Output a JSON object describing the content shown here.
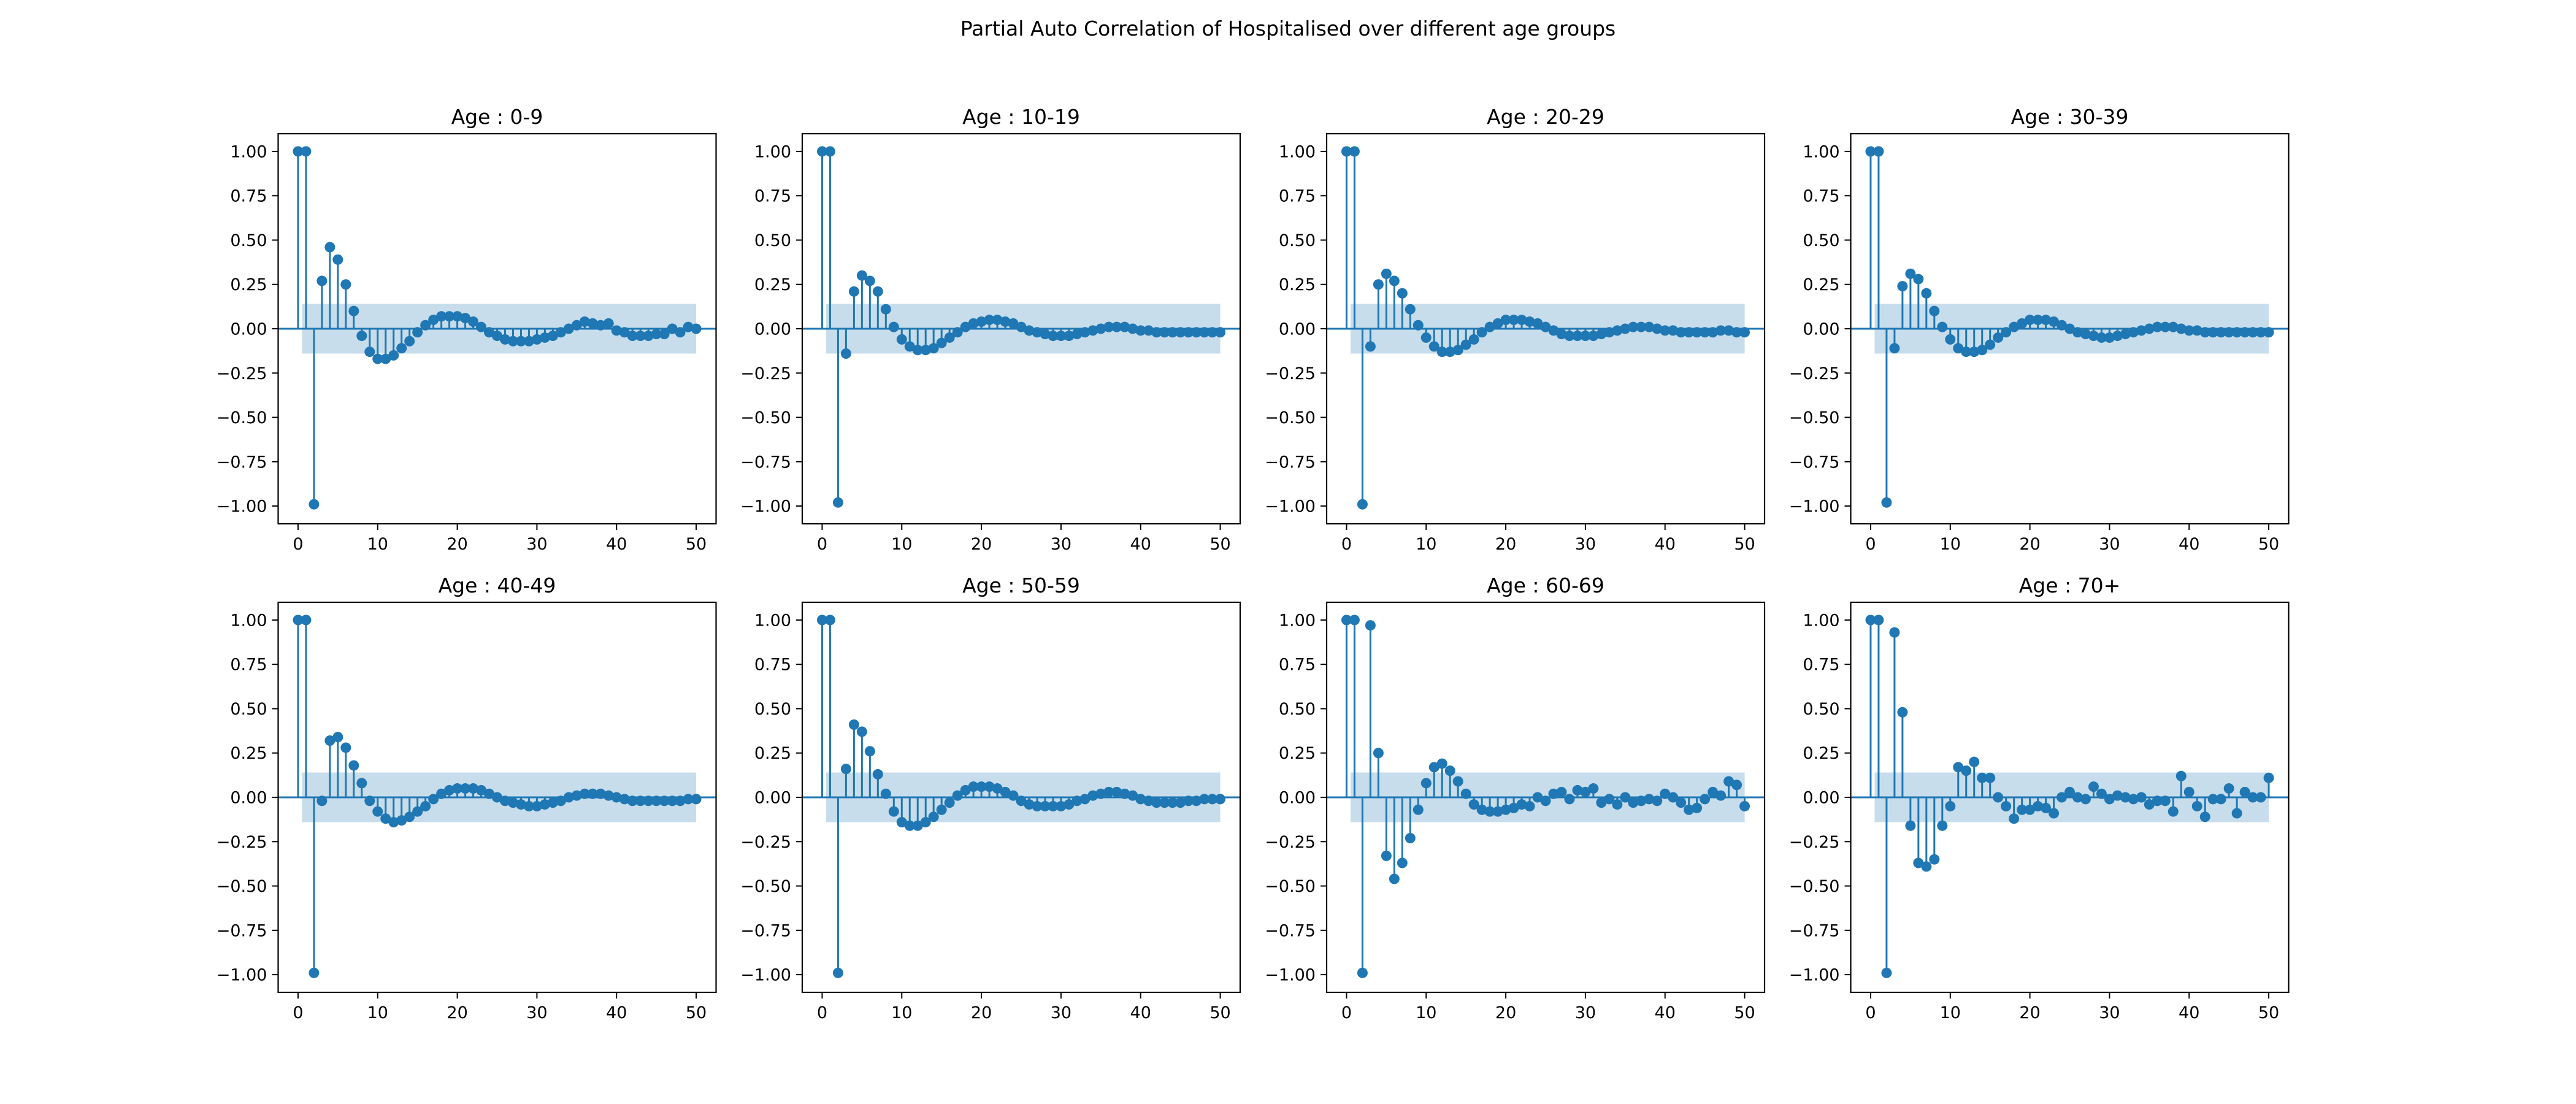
{
  "figure": {
    "title": "Partial Auto Correlation of Hospitalised over different age groups"
  },
  "chart_style": {
    "stem_color": "#1f77b4",
    "band_color": "#1f77b4",
    "band_opacity": 0.25,
    "axes_color": "#000000"
  },
  "chart_data": [
    {
      "type": "stem",
      "title": "Age : 0-9",
      "xlim": [
        -2.5,
        52.5
      ],
      "ylim": [
        -1.1,
        1.1
      ],
      "xticks": [
        0,
        10,
        20,
        30,
        40,
        50
      ],
      "yticks": [
        -1.0,
        -0.75,
        -0.5,
        -0.25,
        0.0,
        0.25,
        0.5,
        0.75,
        1.0
      ],
      "confidence_band": 0.14,
      "lags": [
        0,
        1,
        2,
        3,
        4,
        5,
        6,
        7,
        8,
        9,
        10,
        11,
        12,
        13,
        14,
        15,
        16,
        17,
        18,
        19,
        20,
        21,
        22,
        23,
        24,
        25,
        26,
        27,
        28,
        29,
        30,
        31,
        32,
        33,
        34,
        35,
        36,
        37,
        38,
        39,
        40,
        41,
        42,
        43,
        44,
        45,
        46,
        47,
        48,
        49,
        50
      ],
      "values": [
        1.0,
        1.0,
        -0.99,
        0.27,
        0.46,
        0.39,
        0.25,
        0.1,
        -0.04,
        -0.13,
        -0.17,
        -0.17,
        -0.15,
        -0.11,
        -0.07,
        -0.02,
        0.02,
        0.05,
        0.07,
        0.07,
        0.07,
        0.06,
        0.04,
        0.01,
        -0.02,
        -0.04,
        -0.06,
        -0.07,
        -0.07,
        -0.07,
        -0.06,
        -0.05,
        -0.04,
        -0.02,
        0.0,
        0.02,
        0.04,
        0.03,
        0.02,
        0.03,
        -0.01,
        -0.02,
        -0.04,
        -0.04,
        -0.04,
        -0.03,
        -0.03,
        0.0,
        -0.02,
        0.01,
        0.0
      ]
    },
    {
      "type": "stem",
      "title": "Age : 10-19",
      "xlim": [
        -2.5,
        52.5
      ],
      "ylim": [
        -1.1,
        1.1
      ],
      "xticks": [
        0,
        10,
        20,
        30,
        40,
        50
      ],
      "yticks": [
        -1.0,
        -0.75,
        -0.5,
        -0.25,
        0.0,
        0.25,
        0.5,
        0.75,
        1.0
      ],
      "confidence_band": 0.14,
      "lags": [
        0,
        1,
        2,
        3,
        4,
        5,
        6,
        7,
        8,
        9,
        10,
        11,
        12,
        13,
        14,
        15,
        16,
        17,
        18,
        19,
        20,
        21,
        22,
        23,
        24,
        25,
        26,
        27,
        28,
        29,
        30,
        31,
        32,
        33,
        34,
        35,
        36,
        37,
        38,
        39,
        40,
        41,
        42,
        43,
        44,
        45,
        46,
        47,
        48,
        49,
        50
      ],
      "values": [
        1.0,
        1.0,
        -0.98,
        -0.14,
        0.21,
        0.3,
        0.27,
        0.21,
        0.11,
        0.01,
        -0.06,
        -0.1,
        -0.12,
        -0.12,
        -0.11,
        -0.08,
        -0.05,
        -0.02,
        0.01,
        0.03,
        0.04,
        0.05,
        0.05,
        0.04,
        0.03,
        0.01,
        -0.01,
        -0.02,
        -0.03,
        -0.04,
        -0.04,
        -0.04,
        -0.03,
        -0.02,
        -0.01,
        0.0,
        0.01,
        0.01,
        0.01,
        0.0,
        -0.01,
        -0.01,
        -0.02,
        -0.02,
        -0.02,
        -0.02,
        -0.02,
        -0.02,
        -0.02,
        -0.02,
        -0.02
      ]
    },
    {
      "type": "stem",
      "title": "Age : 20-29",
      "xlim": [
        -2.5,
        52.5
      ],
      "ylim": [
        -1.1,
        1.1
      ],
      "xticks": [
        0,
        10,
        20,
        30,
        40,
        50
      ],
      "yticks": [
        -1.0,
        -0.75,
        -0.5,
        -0.25,
        0.0,
        0.25,
        0.5,
        0.75,
        1.0
      ],
      "confidence_band": 0.14,
      "lags": [
        0,
        1,
        2,
        3,
        4,
        5,
        6,
        7,
        8,
        9,
        10,
        11,
        12,
        13,
        14,
        15,
        16,
        17,
        18,
        19,
        20,
        21,
        22,
        23,
        24,
        25,
        26,
        27,
        28,
        29,
        30,
        31,
        32,
        33,
        34,
        35,
        36,
        37,
        38,
        39,
        40,
        41,
        42,
        43,
        44,
        45,
        46,
        47,
        48,
        49,
        50
      ],
      "values": [
        1.0,
        1.0,
        -0.99,
        -0.1,
        0.25,
        0.31,
        0.27,
        0.2,
        0.11,
        0.02,
        -0.05,
        -0.1,
        -0.13,
        -0.13,
        -0.12,
        -0.09,
        -0.06,
        -0.02,
        0.01,
        0.03,
        0.05,
        0.05,
        0.05,
        0.04,
        0.03,
        0.01,
        -0.01,
        -0.03,
        -0.04,
        -0.04,
        -0.04,
        -0.04,
        -0.03,
        -0.02,
        -0.01,
        0.0,
        0.01,
        0.01,
        0.01,
        0.0,
        -0.01,
        -0.01,
        -0.02,
        -0.02,
        -0.02,
        -0.02,
        -0.02,
        -0.01,
        -0.01,
        -0.02,
        -0.02
      ]
    },
    {
      "type": "stem",
      "title": "Age : 30-39",
      "xlim": [
        -2.5,
        52.5
      ],
      "ylim": [
        -1.1,
        1.1
      ],
      "xticks": [
        0,
        10,
        20,
        30,
        40,
        50
      ],
      "yticks": [
        -1.0,
        -0.75,
        -0.5,
        -0.25,
        0.0,
        0.25,
        0.5,
        0.75,
        1.0
      ],
      "confidence_band": 0.14,
      "lags": [
        0,
        1,
        2,
        3,
        4,
        5,
        6,
        7,
        8,
        9,
        10,
        11,
        12,
        13,
        14,
        15,
        16,
        17,
        18,
        19,
        20,
        21,
        22,
        23,
        24,
        25,
        26,
        27,
        28,
        29,
        30,
        31,
        32,
        33,
        34,
        35,
        36,
        37,
        38,
        39,
        40,
        41,
        42,
        43,
        44,
        45,
        46,
        47,
        48,
        49,
        50
      ],
      "values": [
        1.0,
        1.0,
        -0.98,
        -0.11,
        0.24,
        0.31,
        0.28,
        0.2,
        0.1,
        0.01,
        -0.06,
        -0.11,
        -0.13,
        -0.13,
        -0.12,
        -0.09,
        -0.05,
        -0.02,
        0.01,
        0.03,
        0.05,
        0.05,
        0.05,
        0.04,
        0.02,
        0.0,
        -0.02,
        -0.03,
        -0.04,
        -0.05,
        -0.05,
        -0.04,
        -0.03,
        -0.02,
        -0.01,
        0.0,
        0.01,
        0.01,
        0.01,
        0.0,
        -0.01,
        -0.01,
        -0.02,
        -0.02,
        -0.02,
        -0.02,
        -0.02,
        -0.02,
        -0.02,
        -0.02,
        -0.02
      ]
    },
    {
      "type": "stem",
      "title": "Age : 40-49",
      "xlim": [
        -2.5,
        52.5
      ],
      "ylim": [
        -1.1,
        1.1
      ],
      "xticks": [
        0,
        10,
        20,
        30,
        40,
        50
      ],
      "yticks": [
        -1.0,
        -0.75,
        -0.5,
        -0.25,
        0.0,
        0.25,
        0.5,
        0.75,
        1.0
      ],
      "confidence_band": 0.14,
      "lags": [
        0,
        1,
        2,
        3,
        4,
        5,
        6,
        7,
        8,
        9,
        10,
        11,
        12,
        13,
        14,
        15,
        16,
        17,
        18,
        19,
        20,
        21,
        22,
        23,
        24,
        25,
        26,
        27,
        28,
        29,
        30,
        31,
        32,
        33,
        34,
        35,
        36,
        37,
        38,
        39,
        40,
        41,
        42,
        43,
        44,
        45,
        46,
        47,
        48,
        49,
        50
      ],
      "values": [
        1.0,
        1.0,
        -0.99,
        -0.02,
        0.32,
        0.34,
        0.28,
        0.18,
        0.08,
        -0.02,
        -0.08,
        -0.12,
        -0.14,
        -0.13,
        -0.11,
        -0.08,
        -0.05,
        -0.01,
        0.02,
        0.04,
        0.05,
        0.05,
        0.05,
        0.04,
        0.02,
        0.0,
        -0.02,
        -0.03,
        -0.04,
        -0.05,
        -0.05,
        -0.04,
        -0.03,
        -0.02,
        0.0,
        0.01,
        0.02,
        0.02,
        0.02,
        0.01,
        0.0,
        -0.01,
        -0.02,
        -0.02,
        -0.02,
        -0.02,
        -0.02,
        -0.02,
        -0.02,
        -0.01,
        -0.01
      ]
    },
    {
      "type": "stem",
      "title": "Age : 50-59",
      "xlim": [
        -2.5,
        52.5
      ],
      "ylim": [
        -1.1,
        1.1
      ],
      "xticks": [
        0,
        10,
        20,
        30,
        40,
        50
      ],
      "yticks": [
        -1.0,
        -0.75,
        -0.5,
        -0.25,
        0.0,
        0.25,
        0.5,
        0.75,
        1.0
      ],
      "confidence_band": 0.14,
      "lags": [
        0,
        1,
        2,
        3,
        4,
        5,
        6,
        7,
        8,
        9,
        10,
        11,
        12,
        13,
        14,
        15,
        16,
        17,
        18,
        19,
        20,
        21,
        22,
        23,
        24,
        25,
        26,
        27,
        28,
        29,
        30,
        31,
        32,
        33,
        34,
        35,
        36,
        37,
        38,
        39,
        40,
        41,
        42,
        43,
        44,
        45,
        46,
        47,
        48,
        49,
        50
      ],
      "values": [
        1.0,
        1.0,
        -0.99,
        0.16,
        0.41,
        0.37,
        0.26,
        0.13,
        0.02,
        -0.08,
        -0.14,
        -0.16,
        -0.16,
        -0.14,
        -0.11,
        -0.07,
        -0.03,
        0.01,
        0.04,
        0.06,
        0.06,
        0.06,
        0.05,
        0.03,
        0.01,
        -0.02,
        -0.04,
        -0.05,
        -0.05,
        -0.05,
        -0.05,
        -0.04,
        -0.02,
        -0.01,
        0.01,
        0.02,
        0.03,
        0.03,
        0.02,
        0.01,
        -0.01,
        -0.02,
        -0.03,
        -0.03,
        -0.03,
        -0.03,
        -0.02,
        -0.02,
        -0.01,
        -0.01,
        -0.01
      ]
    },
    {
      "type": "stem",
      "title": "Age : 60-69",
      "xlim": [
        -2.5,
        52.5
      ],
      "ylim": [
        -1.1,
        1.1
      ],
      "xticks": [
        0,
        10,
        20,
        30,
        40,
        50
      ],
      "yticks": [
        -1.0,
        -0.75,
        -0.5,
        -0.25,
        0.0,
        0.25,
        0.5,
        0.75,
        1.0
      ],
      "confidence_band": 0.14,
      "lags": [
        0,
        1,
        2,
        3,
        4,
        5,
        6,
        7,
        8,
        9,
        10,
        11,
        12,
        13,
        14,
        15,
        16,
        17,
        18,
        19,
        20,
        21,
        22,
        23,
        24,
        25,
        26,
        27,
        28,
        29,
        30,
        31,
        32,
        33,
        34,
        35,
        36,
        37,
        38,
        39,
        40,
        41,
        42,
        43,
        44,
        45,
        46,
        47,
        48,
        49,
        50
      ],
      "values": [
        1.0,
        1.0,
        -0.99,
        0.97,
        0.25,
        -0.33,
        -0.46,
        -0.37,
        -0.23,
        -0.07,
        0.08,
        0.17,
        0.19,
        0.15,
        0.09,
        0.02,
        -0.04,
        -0.07,
        -0.08,
        -0.08,
        -0.07,
        -0.06,
        -0.04,
        -0.05,
        0.0,
        -0.02,
        0.02,
        0.03,
        -0.01,
        0.04,
        0.03,
        0.05,
        -0.03,
        -0.01,
        -0.04,
        0.0,
        -0.03,
        -0.02,
        -0.01,
        -0.02,
        0.02,
        0.0,
        -0.03,
        -0.07,
        -0.06,
        -0.01,
        0.03,
        0.01,
        0.09,
        0.07,
        -0.05
      ]
    },
    {
      "type": "stem",
      "title": "Age : 70+",
      "xlim": [
        -2.5,
        52.5
      ],
      "ylim": [
        -1.1,
        1.1
      ],
      "xticks": [
        0,
        10,
        20,
        30,
        40,
        50
      ],
      "yticks": [
        -1.0,
        -0.75,
        -0.5,
        -0.25,
        0.0,
        0.25,
        0.5,
        0.75,
        1.0
      ],
      "confidence_band": 0.14,
      "lags": [
        0,
        1,
        2,
        3,
        4,
        5,
        6,
        7,
        8,
        9,
        10,
        11,
        12,
        13,
        14,
        15,
        16,
        17,
        18,
        19,
        20,
        21,
        22,
        23,
        24,
        25,
        26,
        27,
        28,
        29,
        30,
        31,
        32,
        33,
        34,
        35,
        36,
        37,
        38,
        39,
        40,
        41,
        42,
        43,
        44,
        45,
        46,
        47,
        48,
        49,
        50
      ],
      "values": [
        1.0,
        1.0,
        -0.99,
        0.93,
        0.48,
        -0.16,
        -0.37,
        -0.39,
        -0.35,
        -0.16,
        -0.05,
        0.17,
        0.15,
        0.2,
        0.11,
        0.11,
        0.0,
        -0.05,
        -0.12,
        -0.07,
        -0.07,
        -0.05,
        -0.06,
        -0.09,
        0.0,
        0.03,
        0.0,
        -0.01,
        0.06,
        0.02,
        -0.01,
        0.01,
        0.0,
        -0.01,
        0.0,
        -0.04,
        -0.02,
        -0.02,
        -0.08,
        0.12,
        0.03,
        -0.05,
        -0.11,
        -0.01,
        -0.01,
        0.05,
        -0.09,
        0.03,
        0.0,
        0.0,
        0.11
      ]
    }
  ]
}
